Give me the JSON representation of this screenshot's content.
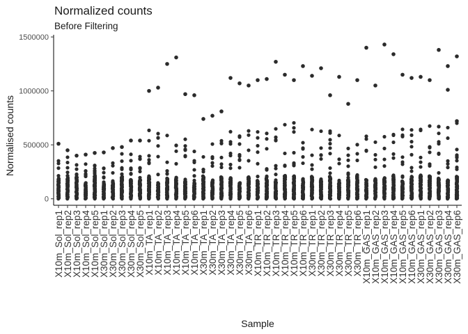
{
  "chart_data": {
    "type": "scatter",
    "title": "Normalized counts",
    "subtitle": "Before Filtering",
    "xlabel": "Sample",
    "ylabel": "Normalised counts",
    "ylim": [
      -60000,
      1520000
    ],
    "yticks": [
      0,
      500000,
      1000000,
      1500000
    ],
    "ytick_labels": [
      "0",
      "500000",
      "1000000",
      "1500000"
    ],
    "grid": false,
    "legend": "none",
    "point_color": "#2b2b2b",
    "categories": [
      "X10m_Sol_rep1",
      "X10m_Sol_rep2",
      "X10m_Sol_rep3",
      "X10m_Sol_rep4",
      "X10m_Sol_rep5",
      "X30m_Sol_rep1",
      "X30m_Sol_rep2",
      "X30m_Sol_rep3",
      "X30m_Sol_rep4",
      "X30m_Sol_rep5",
      "X10m_TA_rep1",
      "X10m_TA_rep2",
      "X10m_TA_rep3",
      "X10m_TA_rep4",
      "X10m_TA_rep5",
      "X10m_TA_rep6",
      "X30m_TA_rep1",
      "X30m_TA_rep2",
      "X30m_TA_rep3",
      "X30m_TA_rep4",
      "X30m_TA_rep5",
      "X30m_TA_rep6",
      "X10m_TR_rep1",
      "X10m_TR_rep2",
      "X10m_TR_rep3",
      "X10m_TR_rep4",
      "X10m_TR_rep5",
      "X10m_TR_rep6",
      "X30m_TR_rep1",
      "X30m_TR_rep2",
      "X30m_TR_rep3",
      "X30m_TR_rep4",
      "X30m_TR_rep5",
      "X30m_TR_rep6",
      "X10m_GAS_rep1",
      "X10m_GAS_rep2",
      "X10m_GAS_rep3",
      "X10m_GAS_rep4",
      "X10m_GAS_rep5",
      "X10m_GAS_rep6",
      "X30m_GAS_rep1",
      "X30m_GAS_rep2",
      "X30m_GAS_rep3",
      "X30m_GAS_rep4",
      "X30m_GAS_rep6"
    ],
    "sample_max": [
      510000,
      450000,
      400000,
      410000,
      425000,
      430000,
      470000,
      480000,
      540000,
      540000,
      1000000,
      1030000,
      1250000,
      1310000,
      970000,
      960000,
      740000,
      770000,
      810000,
      1120000,
      1070000,
      1050000,
      1100000,
      1110000,
      1270000,
      1150000,
      1100000,
      1230000,
      1140000,
      1210000,
      960000,
      1130000,
      880000,
      1100000,
      1400000,
      1050000,
      1430000,
      1340000,
      1150000,
      1120000,
      1130000,
      1100000,
      1380000,
      1230000,
      1320000
    ],
    "notable_outliers": [
      {
        "sample": "X30m_GAS_rep4",
        "value": 1010000
      },
      {
        "sample": "X30m_GAS_rep6",
        "value": 720000
      }
    ]
  }
}
